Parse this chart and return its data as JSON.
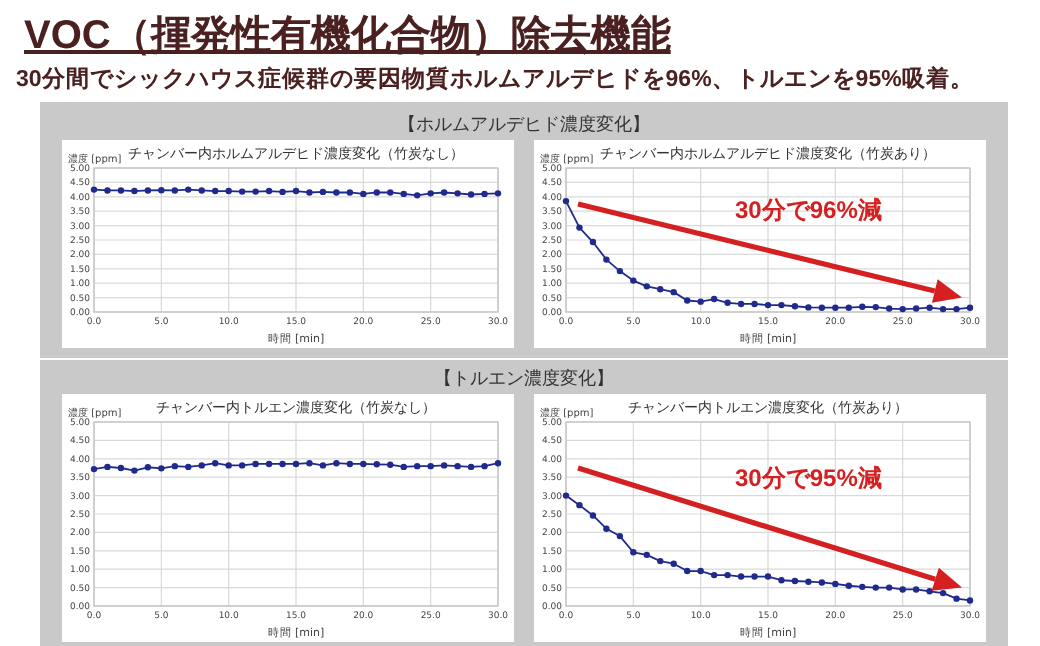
{
  "chart_data": [
    {
      "type": "other",
      "title": "VOC（揮発性有機化合物）除去機能",
      "subtitle": "30分間でシックハウス症候群の要因物質ホルムアルデヒドを96%、トルエンを95%吸着。"
    },
    {
      "type": "line",
      "title": "チャンバー内ホルムアルデヒド濃度変化（竹炭なし）",
      "xlabel": "時間 [min]",
      "ylabel": "濃度 [ppm]",
      "annotations": [
        "【ホルムアルデヒド濃度変化】"
      ],
      "x": [
        0,
        1,
        2,
        3,
        4,
        5,
        6,
        7,
        8,
        9,
        10,
        11,
        12,
        13,
        14,
        15,
        16,
        17,
        18,
        19,
        20,
        21,
        22,
        23,
        24,
        25,
        26,
        27,
        28,
        29,
        30
      ],
      "series": [
        {
          "color": "#1f2a8c",
          "values": [
            4.25,
            4.22,
            4.22,
            4.2,
            4.22,
            4.23,
            4.22,
            4.25,
            4.22,
            4.2,
            4.2,
            4.18,
            4.18,
            4.2,
            4.17,
            4.2,
            4.15,
            4.17,
            4.15,
            4.15,
            4.1,
            4.15,
            4.15,
            4.1,
            4.05,
            4.12,
            4.15,
            4.12,
            4.08,
            4.1,
            4.12
          ]
        }
      ],
      "xlim": [
        0,
        30
      ],
      "ylim": [
        0,
        5
      ],
      "xticks": [
        {
          "value": 0,
          "label": "0.0"
        },
        {
          "value": 5,
          "label": "5.0"
        },
        {
          "value": 10,
          "label": "10.0"
        },
        {
          "value": 15,
          "label": "15.0"
        },
        {
          "value": 20,
          "label": "20.0"
        },
        {
          "value": 25,
          "label": "25.0"
        },
        {
          "value": 30,
          "label": "30.0"
        }
      ],
      "yticks": [
        {
          "value": 0,
          "label": "0.00"
        },
        {
          "value": 0.5,
          "label": "0.50"
        },
        {
          "value": 1,
          "label": "1.00"
        },
        {
          "value": 1.5,
          "label": "1.50"
        },
        {
          "value": 2,
          "label": "2.00"
        },
        {
          "value": 2.5,
          "label": "2.50"
        },
        {
          "value": 3,
          "label": "3.00"
        },
        {
          "value": 3.5,
          "label": "3.50"
        },
        {
          "value": 4,
          "label": "4.00"
        },
        {
          "value": 4.5,
          "label": "4.50"
        },
        {
          "value": 5,
          "label": "5.00"
        }
      ],
      "grid": true,
      "marker": "circle"
    },
    {
      "type": "line",
      "title": "チャンバー内ホルムアルデヒド濃度変化（竹炭あり）",
      "xlabel": "時間 [min]",
      "ylabel": "濃度 [ppm]",
      "annotations": [
        "30分で96%減"
      ],
      "x": [
        0,
        1,
        2,
        3,
        4,
        5,
        6,
        7,
        8,
        9,
        10,
        11,
        12,
        13,
        14,
        15,
        16,
        17,
        18,
        19,
        20,
        21,
        22,
        23,
        24,
        25,
        26,
        27,
        28,
        29,
        30
      ],
      "series": [
        {
          "color": "#1f2a8c",
          "values": [
            3.85,
            2.93,
            2.43,
            1.82,
            1.42,
            1.09,
            0.89,
            0.79,
            0.69,
            0.4,
            0.36,
            0.45,
            0.32,
            0.28,
            0.28,
            0.24,
            0.24,
            0.2,
            0.16,
            0.15,
            0.15,
            0.15,
            0.18,
            0.17,
            0.12,
            0.1,
            0.12,
            0.15,
            0.1,
            0.1,
            0.15
          ]
        }
      ],
      "xlim": [
        0,
        30
      ],
      "ylim": [
        0,
        5
      ],
      "xticks": [
        {
          "value": 0,
          "label": "0.0"
        },
        {
          "value": 5,
          "label": "5.0"
        },
        {
          "value": 10,
          "label": "10.0"
        },
        {
          "value": 15,
          "label": "15.0"
        },
        {
          "value": 20,
          "label": "20.0"
        },
        {
          "value": 25,
          "label": "25.0"
        },
        {
          "value": 30,
          "label": "30.0"
        }
      ],
      "yticks": [
        {
          "value": 0,
          "label": "0.00"
        },
        {
          "value": 0.5,
          "label": "0.50"
        },
        {
          "value": 1,
          "label": "1.00"
        },
        {
          "value": 1.5,
          "label": "1.50"
        },
        {
          "value": 2,
          "label": "2.00"
        },
        {
          "value": 2.5,
          "label": "2.50"
        },
        {
          "value": 3,
          "label": "3.00"
        },
        {
          "value": 3.5,
          "label": "3.50"
        },
        {
          "value": 4,
          "label": "4.00"
        },
        {
          "value": 4.5,
          "label": "4.50"
        },
        {
          "value": 5,
          "label": "5.00"
        }
      ],
      "grid": true,
      "marker": "circle"
    },
    {
      "type": "line",
      "title": "チャンバー内トルエン濃度変化（竹炭なし）",
      "xlabel": "時間 [min]",
      "ylabel": "濃度 [ppm]",
      "annotations": [
        "【トルエン濃度変化】"
      ],
      "x": [
        0,
        1,
        2,
        3,
        4,
        5,
        6,
        7,
        8,
        9,
        10,
        11,
        12,
        13,
        14,
        15,
        16,
        17,
        18,
        19,
        20,
        21,
        22,
        23,
        24,
        25,
        26,
        27,
        28,
        29,
        30
      ],
      "series": [
        {
          "color": "#1f2a8c",
          "values": [
            3.72,
            3.78,
            3.75,
            3.68,
            3.77,
            3.74,
            3.8,
            3.78,
            3.82,
            3.88,
            3.82,
            3.82,
            3.86,
            3.86,
            3.86,
            3.86,
            3.88,
            3.82,
            3.88,
            3.86,
            3.86,
            3.85,
            3.84,
            3.78,
            3.8,
            3.8,
            3.82,
            3.8,
            3.78,
            3.8,
            3.88
          ]
        }
      ],
      "xlim": [
        0,
        30
      ],
      "ylim": [
        0,
        5
      ],
      "xticks": [
        {
          "value": 0,
          "label": "0.0"
        },
        {
          "value": 5,
          "label": "5.0"
        },
        {
          "value": 10,
          "label": "10.0"
        },
        {
          "value": 15,
          "label": "15.0"
        },
        {
          "value": 20,
          "label": "20.0"
        },
        {
          "value": 25,
          "label": "25.0"
        },
        {
          "value": 30,
          "label": "30.0"
        }
      ],
      "yticks": [
        {
          "value": 0,
          "label": "0.00"
        },
        {
          "value": 0.5,
          "label": "0.50"
        },
        {
          "value": 1,
          "label": "1.00"
        },
        {
          "value": 1.5,
          "label": "1.50"
        },
        {
          "value": 2,
          "label": "2.00"
        },
        {
          "value": 2.5,
          "label": "2.50"
        },
        {
          "value": 3,
          "label": "3.00"
        },
        {
          "value": 3.5,
          "label": "3.50"
        },
        {
          "value": 4,
          "label": "4.00"
        },
        {
          "value": 4.5,
          "label": "4.50"
        },
        {
          "value": 5,
          "label": "5.00"
        }
      ],
      "grid": true,
      "marker": "circle"
    },
    {
      "type": "line",
      "title": "チャンバー内トルエン濃度変化（竹炭あり）",
      "xlabel": "時間 [min]",
      "ylabel": "濃度 [ppm]",
      "annotations": [
        "30分で95%減"
      ],
      "x": [
        0,
        1,
        2,
        3,
        4,
        5,
        6,
        7,
        8,
        9,
        10,
        11,
        12,
        13,
        14,
        15,
        16,
        17,
        18,
        19,
        20,
        21,
        22,
        23,
        24,
        25,
        26,
        27,
        28,
        29,
        30
      ],
      "series": [
        {
          "color": "#1f2a8c",
          "values": [
            3.0,
            2.74,
            2.46,
            2.1,
            1.9,
            1.46,
            1.39,
            1.22,
            1.15,
            0.95,
            0.95,
            0.84,
            0.84,
            0.8,
            0.8,
            0.8,
            0.7,
            0.68,
            0.66,
            0.64,
            0.6,
            0.55,
            0.52,
            0.5,
            0.5,
            0.45,
            0.45,
            0.4,
            0.35,
            0.2,
            0.15
          ]
        }
      ],
      "xlim": [
        0,
        30
      ],
      "ylim": [
        0,
        5
      ],
      "xticks": [
        {
          "value": 0,
          "label": "0.0"
        },
        {
          "value": 5,
          "label": "5.0"
        },
        {
          "value": 10,
          "label": "10.0"
        },
        {
          "value": 15,
          "label": "15.0"
        },
        {
          "value": 20,
          "label": "20.0"
        },
        {
          "value": 25,
          "label": "25.0"
        },
        {
          "value": 30,
          "label": "30.0"
        }
      ],
      "yticks": [
        {
          "value": 0,
          "label": "0.00"
        },
        {
          "value": 0.5,
          "label": "0.50"
        },
        {
          "value": 1,
          "label": "1.00"
        },
        {
          "value": 1.5,
          "label": "1.50"
        },
        {
          "value": 2,
          "label": "2.00"
        },
        {
          "value": 2.5,
          "label": "2.50"
        },
        {
          "value": 3,
          "label": "3.00"
        },
        {
          "value": 3.5,
          "label": "3.50"
        },
        {
          "value": 4,
          "label": "4.00"
        },
        {
          "value": 4.5,
          "label": "4.50"
        },
        {
          "value": 5,
          "label": "5.00"
        }
      ],
      "grid": true,
      "marker": "circle"
    }
  ]
}
